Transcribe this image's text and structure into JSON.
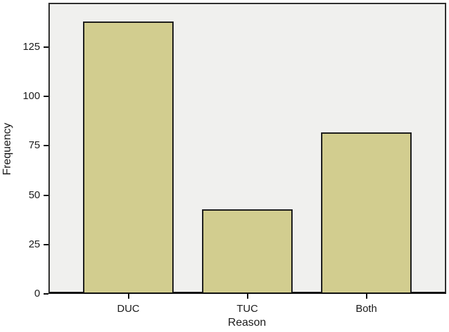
{
  "chart_data": {
    "type": "bar",
    "title": "",
    "categories": [
      "DUC",
      "TUC",
      "Both"
    ],
    "values": [
      138,
      43,
      82
    ],
    "xlabel": "Reason",
    "ylabel": "Frequency",
    "ylim": [
      0,
      147.5
    ],
    "yticks": [
      0,
      25,
      50,
      75,
      100,
      125
    ],
    "grid": false,
    "legend_position": "none",
    "colors": {
      "bar_fill": "#d2cd8f",
      "bar_border": "#1c1c1c",
      "plot_background": "#f0f0ee",
      "plot_border": "#2e2e2e",
      "outer_background": "#ffffff",
      "text": "#1a1a1a"
    }
  }
}
